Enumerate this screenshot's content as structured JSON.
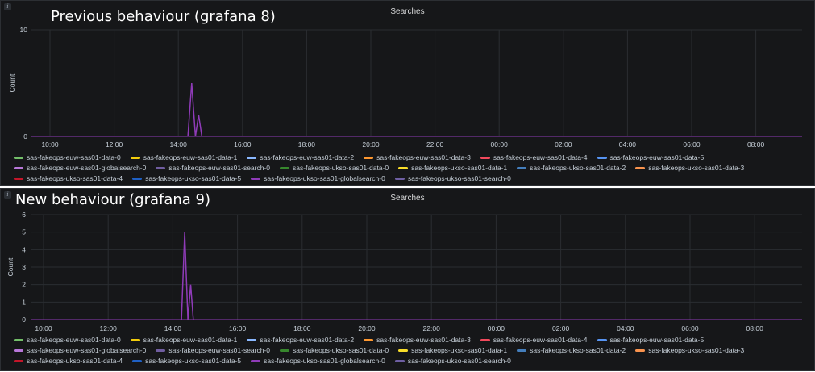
{
  "panels": [
    {
      "caption": "Previous behaviour (grafana 8)",
      "title": "Searches"
    },
    {
      "caption": "New behaviour (grafana 9)",
      "title": "Searches"
    }
  ],
  "chart_data": [
    {
      "type": "line",
      "title": "Searches",
      "ylabel": "Count",
      "xlabel": "",
      "ylim": [
        0,
        10
      ],
      "y_ticks": [
        "0",
        "10"
      ],
      "x_ticks": [
        "10:00",
        "12:00",
        "14:00",
        "16:00",
        "18:00",
        "20:00",
        "22:00",
        "00:00",
        "02:00",
        "04:00",
        "06:00",
        "08:00"
      ],
      "grid": true,
      "legend_position": "bottom",
      "series": [
        {
          "name": "sas-fakeops-euw-sas01-data-0",
          "color": "#73bf69"
        },
        {
          "name": "sas-fakeops-euw-sas01-data-1",
          "color": "#f2cc0c"
        },
        {
          "name": "sas-fakeops-euw-sas01-data-2",
          "color": "#8ab8ff"
        },
        {
          "name": "sas-fakeops-euw-sas01-data-3",
          "color": "#ff9830"
        },
        {
          "name": "sas-fakeops-euw-sas01-data-4",
          "color": "#f2495c"
        },
        {
          "name": "sas-fakeops-euw-sas01-data-5",
          "color": "#5794f2"
        },
        {
          "name": "sas-fakeops-euw-sas01-globalsearch-0",
          "color": "#b877d9"
        },
        {
          "name": "sas-fakeops-euw-sas01-search-0",
          "color": "#705da0"
        },
        {
          "name": "sas-fakeops-ukso-sas01-data-0",
          "color": "#37872d"
        },
        {
          "name": "sas-fakeops-ukso-sas01-data-1",
          "color": "#fade2a"
        },
        {
          "name": "sas-fakeops-ukso-sas01-data-2",
          "color": "#447ebc"
        },
        {
          "name": "sas-fakeops-ukso-sas01-data-3",
          "color": "#f9934e"
        },
        {
          "name": "sas-fakeops-ukso-sas01-data-4",
          "color": "#c4162a"
        },
        {
          "name": "sas-fakeops-ukso-sas01-data-5",
          "color": "#1f60c4"
        },
        {
          "name": "sas-fakeops-ukso-sas01-globalsearch-0",
          "color": "#8f3bb8",
          "points": [
            [
              "14:18",
              0
            ],
            [
              "14:25",
              5
            ],
            [
              "14:32",
              0
            ],
            [
              "14:38",
              2
            ],
            [
              "14:44",
              0
            ]
          ]
        },
        {
          "name": "sas-fakeops-ukso-sas01-search-0",
          "color": "#6e5fa3"
        }
      ]
    },
    {
      "type": "line",
      "title": "Searches",
      "ylabel": "Count",
      "xlabel": "",
      "ylim": [
        0,
        6
      ],
      "y_ticks": [
        "0",
        "1",
        "2",
        "3",
        "4",
        "5",
        "6"
      ],
      "x_ticks": [
        "10:00",
        "12:00",
        "14:00",
        "16:00",
        "18:00",
        "20:00",
        "22:00",
        "00:00",
        "02:00",
        "04:00",
        "06:00",
        "08:00"
      ],
      "grid": true,
      "legend_position": "bottom",
      "series": [
        {
          "name": "sas-fakeops-euw-sas01-data-0",
          "color": "#73bf69"
        },
        {
          "name": "sas-fakeops-euw-sas01-data-1",
          "color": "#f2cc0c"
        },
        {
          "name": "sas-fakeops-euw-sas01-data-2",
          "color": "#8ab8ff"
        },
        {
          "name": "sas-fakeops-euw-sas01-data-3",
          "color": "#ff9830"
        },
        {
          "name": "sas-fakeops-euw-sas01-data-4",
          "color": "#f2495c"
        },
        {
          "name": "sas-fakeops-euw-sas01-data-5",
          "color": "#5794f2"
        },
        {
          "name": "sas-fakeops-euw-sas01-globalsearch-0",
          "color": "#b877d9"
        },
        {
          "name": "sas-fakeops-euw-sas01-search-0",
          "color": "#705da0"
        },
        {
          "name": "sas-fakeops-ukso-sas01-data-0",
          "color": "#37872d"
        },
        {
          "name": "sas-fakeops-ukso-sas01-data-1",
          "color": "#fade2a"
        },
        {
          "name": "sas-fakeops-ukso-sas01-data-2",
          "color": "#447ebc"
        },
        {
          "name": "sas-fakeops-ukso-sas01-data-3",
          "color": "#f9934e"
        },
        {
          "name": "sas-fakeops-ukso-sas01-data-4",
          "color": "#c4162a"
        },
        {
          "name": "sas-fakeops-ukso-sas01-data-5",
          "color": "#1f60c4"
        },
        {
          "name": "sas-fakeops-ukso-sas01-globalsearch-0",
          "color": "#8f3bb8",
          "points": [
            [
              "14:16",
              0
            ],
            [
              "14:22",
              5
            ],
            [
              "14:28",
              0
            ],
            [
              "14:33",
              2
            ],
            [
              "14:38",
              0
            ]
          ]
        },
        {
          "name": "sas-fakeops-ukso-sas01-search-0",
          "color": "#6e5fa3"
        }
      ]
    }
  ]
}
